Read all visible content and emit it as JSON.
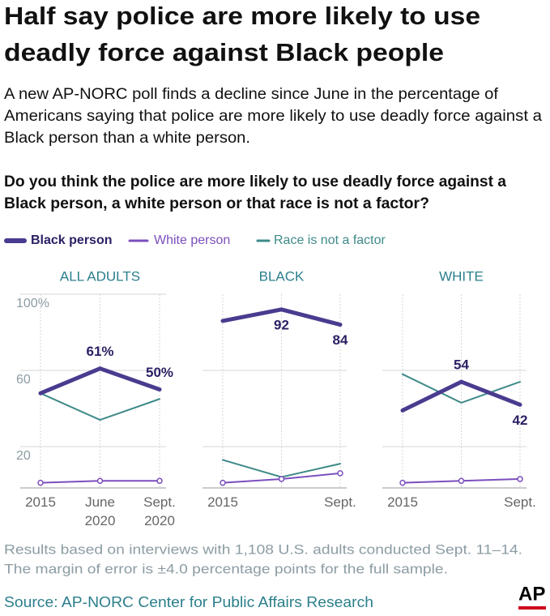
{
  "header": {
    "title": [
      "Half say police are more likely to use",
      "deadly force against Black people"
    ],
    "subtitle": [
      "A new AP-NORC poll finds a decline since June in the percentage of",
      "Americans saying that police are more likely to use deadly force against a",
      "Black person than a white person."
    ],
    "question": [
      "Do you think the police are more likely to use deadly force against a",
      "Black person, a white person or that race is not a factor?"
    ]
  },
  "chart_data": [
    {
      "type": "line",
      "title": "ALL ADULTS",
      "categories": [
        "2015",
        "June 2020",
        "Sept. 2020"
      ],
      "ylim": [
        0,
        100
      ],
      "yticks": [
        {
          "value": 100,
          "label": "100%"
        },
        60,
        20
      ],
      "ytick_labels": true,
      "grid": true,
      "series": [
        {
          "name": "Black person",
          "color": "#4a3b8f",
          "values": [
            48,
            61,
            50
          ],
          "value_labels": [
            null,
            "61%",
            "50%"
          ]
        },
        {
          "name": "White person",
          "color": "#7b4fbd",
          "values": [
            1,
            2,
            2
          ]
        },
        {
          "name": "Race is not a factor",
          "color": "#3e8a88",
          "values": [
            48,
            34,
            45
          ]
        }
      ]
    },
    {
      "type": "line",
      "title": "BLACK",
      "categories": [
        "2015",
        null,
        "Sept."
      ],
      "ylim": [
        0,
        100
      ],
      "yticks": [
        60,
        20
      ],
      "ytick_labels": false,
      "grid": true,
      "series": [
        {
          "name": "Black person",
          "color": "#4a3b8f",
          "values": [
            86,
            92,
            84
          ],
          "value_labels": [
            null,
            "92",
            "84"
          ]
        },
        {
          "name": "White person",
          "color": "#7b4fbd",
          "values": [
            1,
            3,
            6
          ]
        },
        {
          "name": "Race is not a factor",
          "color": "#3e8a88",
          "values": [
            13,
            4,
            11
          ]
        }
      ]
    },
    {
      "type": "line",
      "title": "WHITE",
      "categories": [
        "2015",
        null,
        "Sept."
      ],
      "ylim": [
        0,
        100
      ],
      "yticks": [
        60,
        20
      ],
      "ytick_labels": false,
      "grid": true,
      "series": [
        {
          "name": "Black person",
          "color": "#4a3b8f",
          "values": [
            39,
            54,
            42
          ],
          "value_labels": [
            null,
            "54",
            "42"
          ]
        },
        {
          "name": "White person",
          "color": "#7b4fbd",
          "values": [
            1,
            2,
            3
          ]
        },
        {
          "name": "Race is not a factor",
          "color": "#3e8a88",
          "values": [
            58,
            43,
            54
          ]
        }
      ]
    }
  ],
  "footer": {
    "note": [
      "Results based on interviews with 1,108 U.S. adults conducted Sept. 11–14.",
      "The margin of error is ±4.0 percentage points for the full sample."
    ],
    "source": "Source: AP-NORC Center for Public Affairs Research",
    "logo": "AP"
  }
}
